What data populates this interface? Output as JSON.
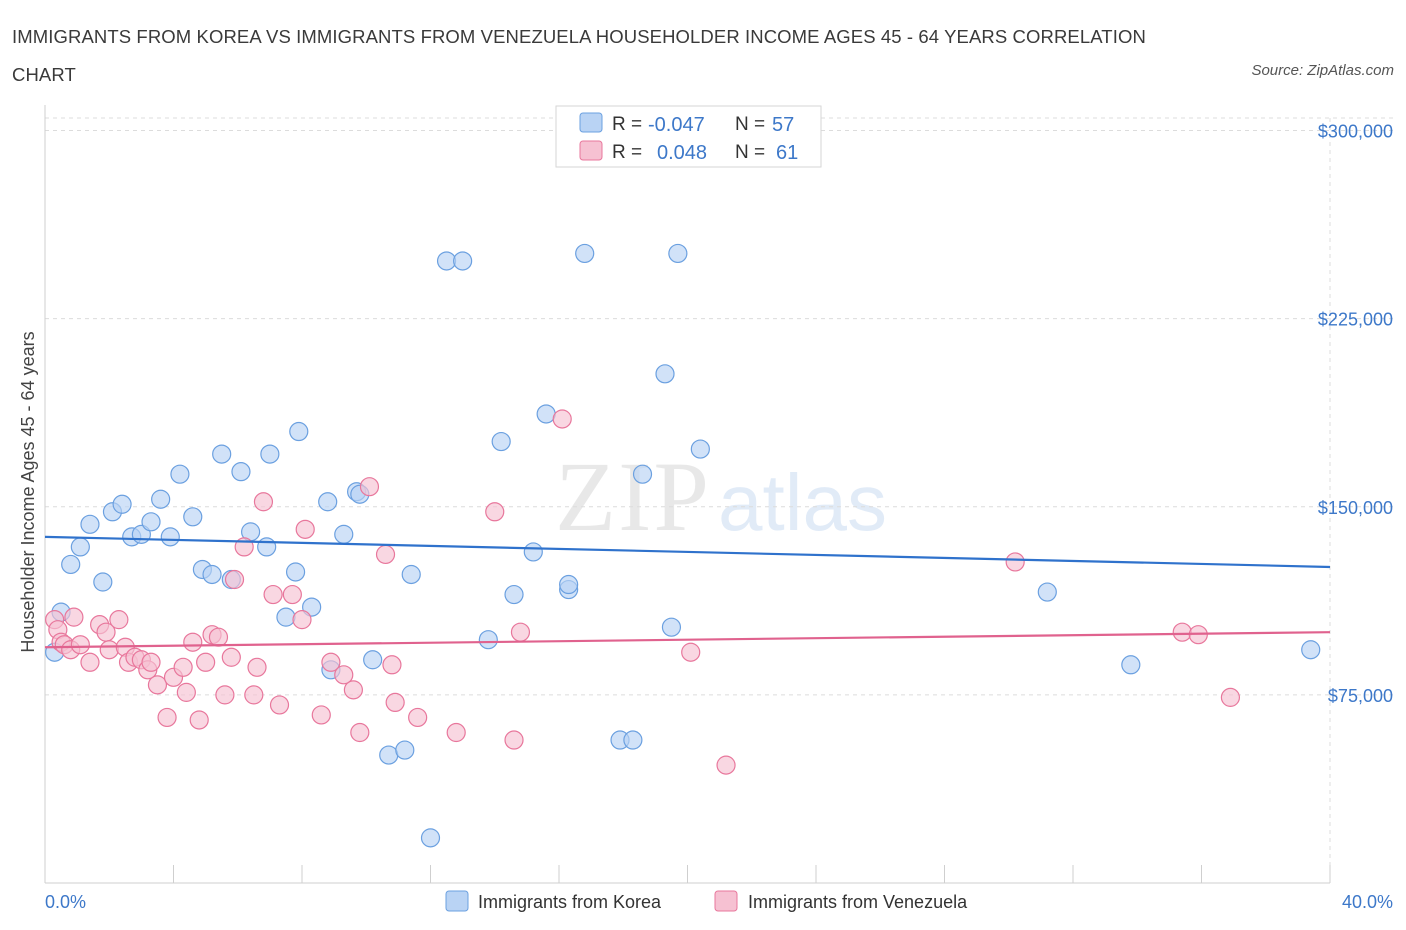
{
  "title": "IMMIGRANTS FROM KOREA VS IMMIGRANTS FROM VENEZUELA HOUSEHOLDER INCOME AGES 45 - 64 YEARS CORRELATION CHART",
  "source": "Source: ZipAtlas.com",
  "watermark": {
    "zip": "ZIP",
    "atlas": "atlas"
  },
  "colors": {
    "korea": "#6ba0e0",
    "korea_fill": "#b9d3f4",
    "venezuela": "#e8779c",
    "venezuela_fill": "#f6c1d2",
    "tick": "#3d78c9"
  },
  "legend": {
    "rows": [
      {
        "r_label": "R =",
        "r_value": "-0.047",
        "n_label": "N =",
        "n_value": "57"
      },
      {
        "r_label": "R =",
        "r_value": "0.048",
        "n_label": "N =",
        "n_value": "61"
      }
    ]
  },
  "chart_data": {
    "type": "scatter",
    "ylabel": "Householder Income Ages 45 - 64 years",
    "xlabel": "",
    "x_tick_labels": [
      "0.0%",
      "40.0%"
    ],
    "y_tick_labels": [
      "$300,000",
      "$225,000",
      "$150,000",
      "$75,000"
    ],
    "xlim": [
      0,
      40
    ],
    "ylim": [
      0,
      305000
    ],
    "grid": true,
    "legend_position": "top-center",
    "series": [
      {
        "name": "Immigrants from Korea",
        "trend": {
          "x": [
            0,
            40
          ],
          "y": [
            138000,
            126000
          ]
        },
        "points": [
          [
            0.3,
            92000
          ],
          [
            0.5,
            108000
          ],
          [
            0.8,
            127000
          ],
          [
            1.1,
            134000
          ],
          [
            1.4,
            143000
          ],
          [
            1.8,
            120000
          ],
          [
            2.1,
            148000
          ],
          [
            2.4,
            151000
          ],
          [
            2.7,
            138000
          ],
          [
            3.0,
            139000
          ],
          [
            3.3,
            144000
          ],
          [
            3.6,
            153000
          ],
          [
            3.9,
            138000
          ],
          [
            4.2,
            163000
          ],
          [
            4.6,
            146000
          ],
          [
            4.9,
            125000
          ],
          [
            5.2,
            123000
          ],
          [
            5.5,
            171000
          ],
          [
            5.8,
            121000
          ],
          [
            6.1,
            164000
          ],
          [
            6.4,
            140000
          ],
          [
            6.9,
            134000
          ],
          [
            7.0,
            171000
          ],
          [
            7.5,
            106000
          ],
          [
            7.8,
            124000
          ],
          [
            7.9,
            180000
          ],
          [
            8.3,
            110000
          ],
          [
            8.8,
            152000
          ],
          [
            8.9,
            85000
          ],
          [
            9.3,
            139000
          ],
          [
            9.7,
            156000
          ],
          [
            9.8,
            155000
          ],
          [
            10.2,
            89000
          ],
          [
            10.7,
            51000
          ],
          [
            11.2,
            53000
          ],
          [
            11.4,
            123000
          ],
          [
            12.0,
            18000
          ],
          [
            12.5,
            248000
          ],
          [
            13.0,
            248000
          ],
          [
            13.8,
            97000
          ],
          [
            14.2,
            176000
          ],
          [
            14.6,
            115000
          ],
          [
            15.2,
            132000
          ],
          [
            15.6,
            187000
          ],
          [
            16.3,
            117000
          ],
          [
            16.3,
            119000
          ],
          [
            16.8,
            251000
          ],
          [
            17.9,
            57000
          ],
          [
            18.3,
            57000
          ],
          [
            18.6,
            163000
          ],
          [
            19.3,
            203000
          ],
          [
            19.5,
            102000
          ],
          [
            19.7,
            251000
          ],
          [
            20.4,
            173000
          ],
          [
            31.2,
            116000
          ],
          [
            33.8,
            87000
          ],
          [
            39.4,
            93000
          ]
        ]
      },
      {
        "name": "Immigrants from Venezuela",
        "trend": {
          "x": [
            0,
            40
          ],
          "y": [
            94000,
            100000
          ]
        },
        "points": [
          [
            0.3,
            105000
          ],
          [
            0.4,
            101000
          ],
          [
            0.5,
            96000
          ],
          [
            0.6,
            95000
          ],
          [
            0.8,
            93000
          ],
          [
            0.9,
            106000
          ],
          [
            1.1,
            95000
          ],
          [
            1.4,
            88000
          ],
          [
            1.7,
            103000
          ],
          [
            1.9,
            100000
          ],
          [
            2.0,
            93000
          ],
          [
            2.3,
            105000
          ],
          [
            2.5,
            94000
          ],
          [
            2.6,
            88000
          ],
          [
            2.8,
            90000
          ],
          [
            3.0,
            89000
          ],
          [
            3.2,
            85000
          ],
          [
            3.3,
            88000
          ],
          [
            3.5,
            79000
          ],
          [
            3.8,
            66000
          ],
          [
            4.0,
            82000
          ],
          [
            4.3,
            86000
          ],
          [
            4.4,
            76000
          ],
          [
            4.6,
            96000
          ],
          [
            4.8,
            65000
          ],
          [
            5.0,
            88000
          ],
          [
            5.2,
            99000
          ],
          [
            5.4,
            98000
          ],
          [
            5.6,
            75000
          ],
          [
            5.8,
            90000
          ],
          [
            5.9,
            121000
          ],
          [
            6.2,
            134000
          ],
          [
            6.5,
            75000
          ],
          [
            6.6,
            86000
          ],
          [
            6.8,
            152000
          ],
          [
            7.1,
            115000
          ],
          [
            7.3,
            71000
          ],
          [
            7.7,
            115000
          ],
          [
            8.0,
            105000
          ],
          [
            8.1,
            141000
          ],
          [
            8.6,
            67000
          ],
          [
            8.9,
            88000
          ],
          [
            9.3,
            83000
          ],
          [
            9.6,
            77000
          ],
          [
            9.8,
            60000
          ],
          [
            10.1,
            158000
          ],
          [
            10.6,
            131000
          ],
          [
            10.8,
            87000
          ],
          [
            10.9,
            72000
          ],
          [
            11.6,
            66000
          ],
          [
            12.8,
            60000
          ],
          [
            14.0,
            148000
          ],
          [
            14.6,
            57000
          ],
          [
            14.8,
            100000
          ],
          [
            16.1,
            185000
          ],
          [
            20.1,
            92000
          ],
          [
            21.2,
            47000
          ],
          [
            30.2,
            128000
          ],
          [
            35.4,
            100000
          ],
          [
            35.9,
            99000
          ],
          [
            36.9,
            74000
          ]
        ]
      }
    ]
  }
}
